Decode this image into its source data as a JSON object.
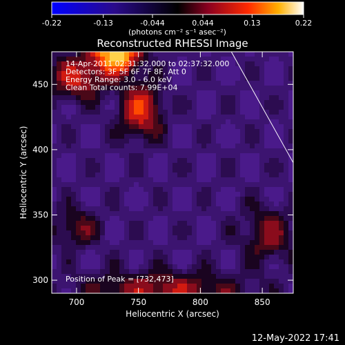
{
  "chart_data": {
    "type": "heatmap",
    "title": "Reconstructed RHESSI Image",
    "xlabel": "Heliocentric X (arcsec)",
    "ylabel": "Heliocentric Y (arcsec)",
    "xlim": [
      680,
      875
    ],
    "ylim": [
      290,
      475
    ],
    "xticks": [
      "700",
      "750",
      "800",
      "850"
    ],
    "yticks": [
      "300",
      "350",
      "400",
      "450"
    ],
    "colorbar": {
      "min": -0.22,
      "max": 0.22,
      "ticks": [
        "-0.22",
        "-0.13",
        "-0.044",
        "0.044",
        "0.13",
        "0.22"
      ],
      "label": "(photons cm⁻² s⁻¹ asec⁻²)"
    },
    "annotations": [
      "14-Apr-2011 02:31:32.000 to 02:37:32.000",
      "Detectors: 3F 5F 6F 7F 8F, Att 0",
      "Energy Range: 3.0 - 6.0 keV",
      "Clean     Total counts: 7.99E+04"
    ],
    "peak_label": "Position of Peak = [732,473]",
    "peak": [
      732,
      473
    ],
    "limb": [
      [
        825,
        475
      ],
      [
        875,
        390
      ]
    ],
    "colors": {
      "positive_peak": "#fff7a0",
      "positive_mid": "#ff4a00",
      "positive_low": "#8a0c1c",
      "negative": "#3c1470",
      "limb_line": "#ffffff"
    }
  },
  "footer": {
    "datetime": "12-May-2022 17:41"
  }
}
